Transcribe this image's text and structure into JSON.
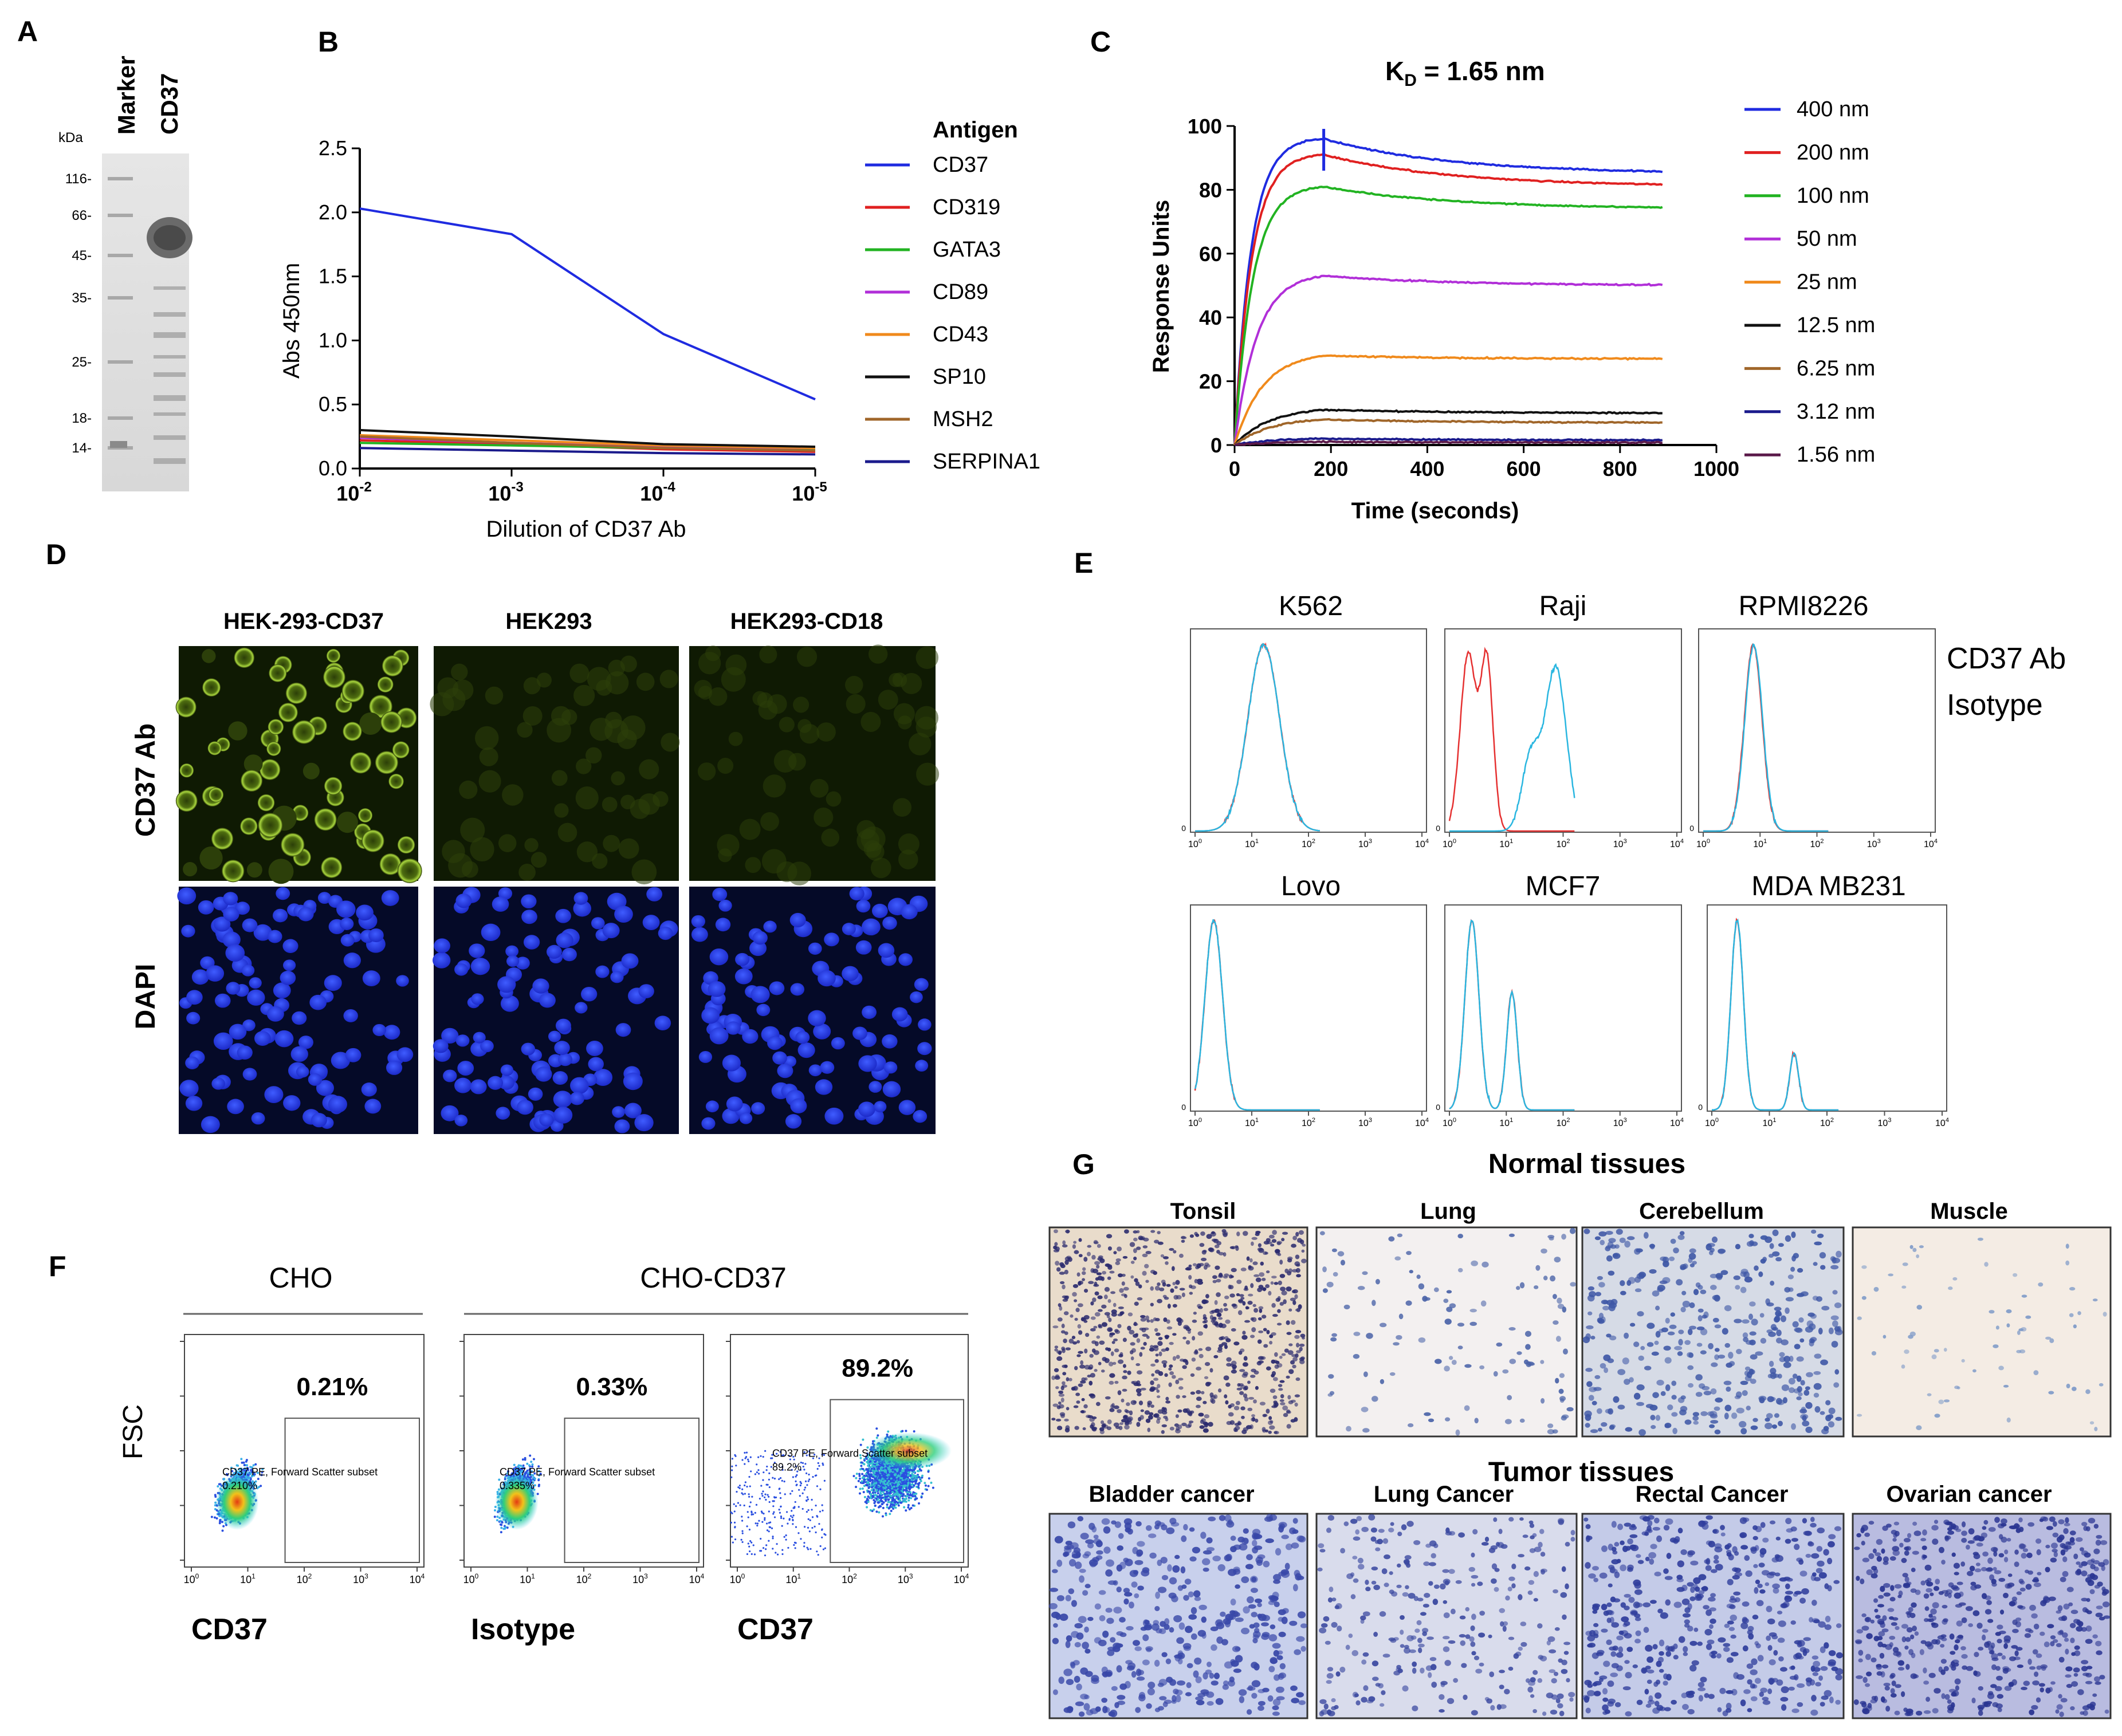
{
  "figure": {
    "panel_labels": [
      "A",
      "B",
      "C",
      "D",
      "E",
      "F",
      "G"
    ]
  },
  "panel_a": {
    "kda_label": "kDa",
    "lane_labels": [
      "Marker",
      "CD37"
    ],
    "markers": [
      "116-",
      "66-",
      "45-",
      "35-",
      "25-",
      "18-",
      "14-"
    ]
  },
  "panel_b": {
    "legend_title": "Antigen"
  },
  "panel_c": {
    "kd_main": "K",
    "kd_sub": "D",
    "kd_rest": " = 1.65 nm"
  },
  "panel_d": {
    "columns": [
      "HEK-293-CD37",
      "HEK293",
      "HEK293-CD18"
    ],
    "rows": [
      "CD37 Ab",
      "DAPI"
    ]
  },
  "panel_e": {
    "titles": [
      "K562",
      "Raji",
      "RPMI8226",
      "Lovo",
      "MCF7",
      "MDA MB231"
    ],
    "legend": [
      "CD37 Ab",
      "Isotype"
    ],
    "colors": {
      "cd37": "#29b6e0",
      "isotype": "#e53030"
    },
    "tick_labels": [
      "10",
      "10",
      "10",
      "10",
      "10"
    ],
    "tick_exps": [
      "0",
      "1",
      "2",
      "3",
      "4"
    ],
    "y_zero": "0"
  },
  "panel_f": {
    "group_titles": [
      "CHO",
      "CHO-CD37"
    ],
    "y_label": "FSC",
    "plots": [
      {
        "percent": "0.21%",
        "gate_label": "CD37 PE, Forward Scatter subset",
        "gate_value": "0.210%",
        "x_label": "CD37"
      },
      {
        "percent": "0.33%",
        "gate_label": "CD37 PE, Forward Scatter subset",
        "gate_value": "0.335%",
        "x_label": "Isotype"
      },
      {
        "percent": "89.2%",
        "gate_label": "CD37 PE, Forward Scatter subset",
        "gate_value": "89.2%",
        "x_label": "CD37"
      }
    ]
  },
  "panel_g": {
    "normal_title": "Normal tissues",
    "tumor_title": "Tumor tissues",
    "normal": [
      "Tonsil",
      "Lung",
      "Cerebellum",
      "Muscle"
    ],
    "tumor": [
      "Bladder cancer",
      "Lung Cancer",
      "Rectal Cancer",
      "Ovarian cancer"
    ]
  },
  "chart_data": [
    {
      "type": "line",
      "panel": "B",
      "title": "",
      "xlabel": "Dilution of CD37 Ab",
      "ylabel": "Abs 450nm",
      "x_ticks": [
        "10-2",
        "10-3",
        "10-4",
        "10-5"
      ],
      "x_tick_base": "10",
      "x_tick_exps": [
        "-2",
        "-3",
        "-4",
        "-5"
      ],
      "y_ticks": [
        "0.0",
        "0.5",
        "1.0",
        "1.5",
        "2.0",
        "2.5"
      ],
      "ylim": [
        0,
        2.5
      ],
      "legend_title": "Antigen",
      "series": [
        {
          "name": "CD37",
          "color": "#1f2be0",
          "values": [
            2.03,
            1.83,
            1.05,
            0.54
          ]
        },
        {
          "name": "CD319",
          "color": "#e02020",
          "values": [
            0.22,
            0.19,
            0.15,
            0.13
          ]
        },
        {
          "name": "GATA3",
          "color": "#22b322",
          "values": [
            0.2,
            0.18,
            0.16,
            0.15
          ]
        },
        {
          "name": "CD89",
          "color": "#b12fd8",
          "values": [
            0.24,
            0.2,
            0.17,
            0.16
          ]
        },
        {
          "name": "CD43",
          "color": "#f08a1c",
          "values": [
            0.26,
            0.22,
            0.18,
            0.16
          ]
        },
        {
          "name": "SP10",
          "color": "#111111",
          "values": [
            0.3,
            0.25,
            0.19,
            0.17
          ]
        },
        {
          "name": "MSH2",
          "color": "#a0662a",
          "values": [
            0.25,
            0.2,
            0.16,
            0.14
          ]
        },
        {
          "name": "SERPINA1",
          "color": "#1a1a8c",
          "values": [
            0.16,
            0.14,
            0.12,
            0.11
          ]
        }
      ]
    },
    {
      "type": "line",
      "panel": "C",
      "title": "KD = 1.65 nm",
      "xlabel": "Time (seconds)",
      "ylabel": "Response  Units",
      "x_ticks": [
        "0",
        "200",
        "400",
        "600",
        "800",
        "1000"
      ],
      "y_ticks": [
        "0",
        "20",
        "40",
        "60",
        "80",
        "100"
      ],
      "xlim": [
        0,
        1000
      ],
      "ylim": [
        0,
        100
      ],
      "association_end": 185,
      "run_end": 890,
      "series": [
        {
          "name": "400 nm",
          "color": "#1f2be0",
          "plateau": 96,
          "end": 85
        },
        {
          "name": "200 nm",
          "color": "#e02020",
          "plateau": 91,
          "end": 81
        },
        {
          "name": "100 nm",
          "color": "#22b322",
          "plateau": 81,
          "end": 74
        },
        {
          "name": "50 nm",
          "color": "#b12fd8",
          "plateau": 53,
          "end": 50
        },
        {
          "name": "25 nm",
          "color": "#f08a1c",
          "plateau": 28,
          "end": 27
        },
        {
          "name": "12.5 nm",
          "color": "#111111",
          "plateau": 11,
          "end": 10
        },
        {
          "name": "6.25 nm",
          "color": "#a0662a",
          "plateau": 8,
          "end": 7
        },
        {
          "name": "3.12 nm",
          "color": "#1a1a8c",
          "plateau": 2,
          "end": 1.5
        },
        {
          "name": "1.56 nm",
          "color": "#5b1a4a",
          "plateau": 1,
          "end": 0.8
        }
      ]
    }
  ]
}
